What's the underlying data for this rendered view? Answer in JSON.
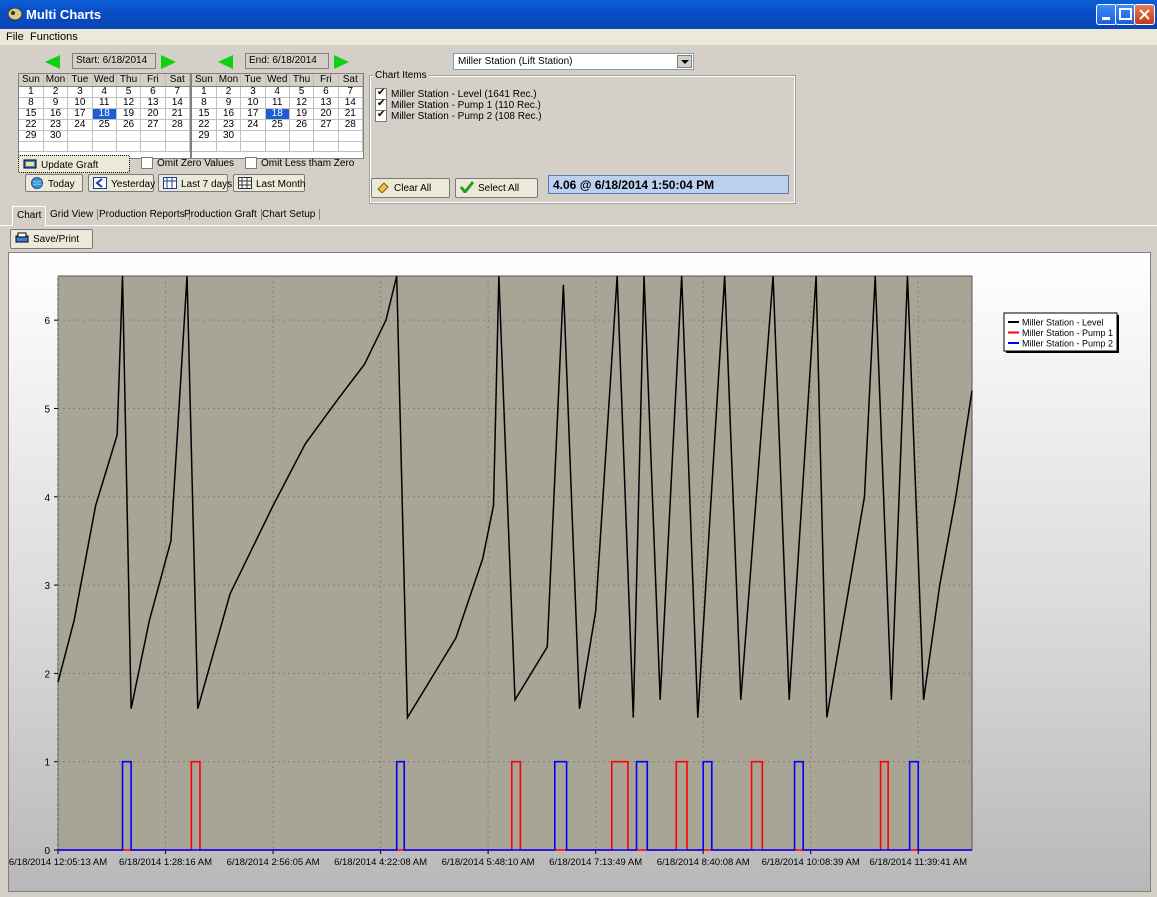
{
  "window": {
    "title": "Multi Charts"
  },
  "menu": [
    "File",
    "Functions"
  ],
  "start_calendar": {
    "label": "Start: 6/18/2014",
    "days_header": [
      "Sun",
      "Mon",
      "Tue",
      "Wed",
      "Thu",
      "Fri",
      "Sat"
    ],
    "weeks": [
      [
        "1",
        "2",
        "3",
        "4",
        "5",
        "6",
        "7"
      ],
      [
        "8",
        "9",
        "10",
        "11",
        "12",
        "13",
        "14"
      ],
      [
        "15",
        "16",
        "17",
        "18",
        "19",
        "20",
        "21"
      ],
      [
        "22",
        "23",
        "24",
        "25",
        "26",
        "27",
        "28"
      ],
      [
        "29",
        "30",
        "",
        "",
        "",
        "",
        ""
      ],
      [
        "",
        "",
        "",
        "",
        "",
        "",
        ""
      ]
    ],
    "selected": "18"
  },
  "end_calendar": {
    "label": "End: 6/18/2014",
    "days_header": [
      "Sun",
      "Mon",
      "Tue",
      "Wed",
      "Thu",
      "Fri",
      "Sat"
    ],
    "weeks": [
      [
        "1",
        "2",
        "3",
        "4",
        "5",
        "6",
        "7"
      ],
      [
        "8",
        "9",
        "10",
        "11",
        "12",
        "13",
        "14"
      ],
      [
        "15",
        "16",
        "17",
        "18",
        "19",
        "20",
        "21"
      ],
      [
        "22",
        "23",
        "24",
        "25",
        "26",
        "27",
        "28"
      ],
      [
        "29",
        "30",
        "",
        "",
        "",
        "",
        ""
      ],
      [
        "",
        "",
        "",
        "",
        "",
        "",
        ""
      ]
    ],
    "selected": "18"
  },
  "controls": {
    "update_graft": "Update Graft",
    "omit_zero": "Omit Zero Values",
    "omit_less_zero": "Omit Less tham Zero",
    "today": "Today",
    "yesterday": "Yesterday",
    "last7": "Last 7 days",
    "last_month": "Last Month"
  },
  "station_select": {
    "value": "Miller Station (Lift Station)"
  },
  "chart_items": {
    "label": "Chart Items",
    "items": [
      "Miller Station - Level (1641 Rec.)",
      "Miller Station - Pump 1 (110 Rec.)",
      "Miller Station - Pump 2 (108 Rec.)"
    ],
    "clear_all": "Clear All",
    "select_all": "Select All"
  },
  "value_readout": "4.06  @ 6/18/2014 1:50:04 PM",
  "tabs": [
    "Chart",
    "Grid View",
    "Production Reports",
    "Production Graft",
    "Chart Setup"
  ],
  "save_print": "Save/Print",
  "colors": {
    "level": "#000000",
    "pump1": "#ff0000",
    "pump2": "#0000ff",
    "plot_bg": "#a8a496"
  },
  "chart_data": {
    "type": "line",
    "y_ticks": [
      "0",
      "1",
      "2",
      "3",
      "4",
      "5",
      "6"
    ],
    "ylim": [
      0,
      6.5
    ],
    "x_ticks": [
      "6/18/2014 12:05:13 AM",
      "6/18/2014 1:28:16 AM",
      "6/18/2014 2:56:05 AM",
      "6/18/2014 4:22:08 AM",
      "6/18/2014 5:48:10 AM",
      "6/18/2014 7:13:49 AM",
      "6/18/2014 8:40:08 AM",
      "6/18/2014 10:08:39 AM",
      "6/18/2014 11:39:41 AM"
    ],
    "x_tick_pos": [
      0,
      1,
      2,
      3,
      4,
      5,
      6,
      7,
      8
    ],
    "xlim": [
      0,
      8.5
    ],
    "series": [
      {
        "name": "Miller Station - Level",
        "color": "#000000",
        "points": [
          [
            0,
            1.9
          ],
          [
            0.15,
            2.6
          ],
          [
            0.35,
            3.9
          ],
          [
            0.55,
            4.7
          ],
          [
            0.6,
            6.5
          ],
          [
            0.68,
            1.6
          ],
          [
            0.85,
            2.6
          ],
          [
            1.05,
            3.5
          ],
          [
            1.2,
            6.5
          ],
          [
            1.3,
            1.6
          ],
          [
            1.6,
            2.9
          ],
          [
            2.0,
            3.9
          ],
          [
            2.3,
            4.6
          ],
          [
            2.6,
            5.1
          ],
          [
            2.85,
            5.5
          ],
          [
            3.05,
            6.0
          ],
          [
            3.15,
            6.5
          ],
          [
            3.25,
            1.5
          ],
          [
            3.5,
            2.0
          ],
          [
            3.7,
            2.4
          ],
          [
            3.95,
            3.3
          ],
          [
            4.05,
            3.9
          ],
          [
            4.1,
            6.5
          ],
          [
            4.25,
            1.7
          ],
          [
            4.55,
            2.3
          ],
          [
            4.7,
            6.4
          ],
          [
            4.85,
            1.6
          ],
          [
            5.0,
            2.7
          ],
          [
            5.2,
            6.5
          ],
          [
            5.35,
            1.5
          ],
          [
            5.45,
            6.5
          ],
          [
            5.6,
            1.7
          ],
          [
            5.8,
            6.5
          ],
          [
            5.95,
            1.5
          ],
          [
            6.2,
            6.5
          ],
          [
            6.35,
            1.7
          ],
          [
            6.65,
            6.5
          ],
          [
            6.8,
            1.7
          ],
          [
            7.05,
            6.5
          ],
          [
            7.15,
            1.5
          ],
          [
            7.5,
            4.0
          ],
          [
            7.6,
            6.5
          ],
          [
            7.75,
            1.7
          ],
          [
            7.9,
            6.5
          ],
          [
            8.05,
            1.7
          ],
          [
            8.2,
            3.0
          ],
          [
            8.35,
            4.0
          ],
          [
            8.5,
            5.2
          ]
        ]
      },
      {
        "name": "Miller Station - Pump 1",
        "color": "#ff0000",
        "pulses": [
          [
            1.24,
            1.32
          ],
          [
            4.22,
            4.3
          ],
          [
            5.15,
            5.3
          ],
          [
            5.75,
            5.85
          ],
          [
            6.45,
            6.55
          ],
          [
            7.65,
            7.72
          ]
        ]
      },
      {
        "name": "Miller Station - Pump 2",
        "color": "#0000ff",
        "pulses": [
          [
            0.6,
            0.68
          ],
          [
            3.15,
            3.22
          ],
          [
            4.62,
            4.73
          ],
          [
            5.38,
            5.48
          ],
          [
            6.0,
            6.08
          ],
          [
            6.85,
            6.93
          ],
          [
            7.92,
            8.0
          ]
        ]
      }
    ],
    "legend_placement": "right"
  }
}
